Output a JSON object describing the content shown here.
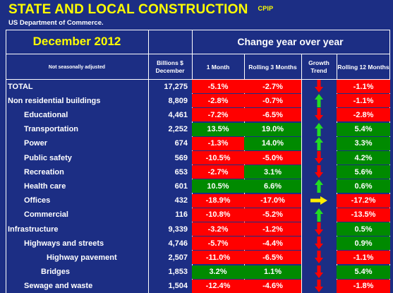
{
  "header": {
    "title": "STATE AND LOCAL CONSTRUCTION",
    "tag": "CPIP",
    "subtitle": "US Department of Commerce."
  },
  "table": {
    "month": "December 2012",
    "change_label": "Change year over year",
    "nsa_label": "Not seasonally adjusted",
    "columns": {
      "billions": "Billions $ December",
      "one_month": "1 Month",
      "rolling3": "Rolling 3 Months",
      "trend": "Growth Trend",
      "rolling12": "Rolling 12 Months"
    },
    "colors": {
      "red": "#ff0000",
      "green": "#008a00",
      "navy": "#1c2e84",
      "yellow": "#ffff00"
    },
    "rows": [
      {
        "label": "TOTAL",
        "indent": 0,
        "billions": "17,275",
        "m1": "-5.1%",
        "m1_color": "red",
        "r3": "-2.7%",
        "r3_color": "red",
        "trend": "down",
        "r12": "-1.1%",
        "r12_color": "red"
      },
      {
        "label": "Non residential buildings",
        "indent": 0,
        "billions": "8,809",
        "m1": "-2.8%",
        "m1_color": "red",
        "r3": "-0.7%",
        "r3_color": "red",
        "trend": "up",
        "r12": "-1.1%",
        "r12_color": "red"
      },
      {
        "label": "Educational",
        "indent": 1,
        "billions": "4,461",
        "m1": "-7.2%",
        "m1_color": "red",
        "r3": "-6.5%",
        "r3_color": "red",
        "trend": "down",
        "r12": "-2.8%",
        "r12_color": "red"
      },
      {
        "label": "Transportation",
        "indent": 1,
        "billions": "2,252",
        "m1": "13.5%",
        "m1_color": "green",
        "r3": "19.0%",
        "r3_color": "green",
        "trend": "up",
        "r12": "5.4%",
        "r12_color": "green"
      },
      {
        "label": "Power",
        "indent": 1,
        "billions": "674",
        "m1": "-1.3%",
        "m1_color": "red",
        "r3": "14.0%",
        "r3_color": "green",
        "trend": "up",
        "r12": "3.3%",
        "r12_color": "green"
      },
      {
        "label": "Public safety",
        "indent": 1,
        "billions": "569",
        "m1": "-10.5%",
        "m1_color": "red",
        "r3": "-5.0%",
        "r3_color": "red",
        "trend": "down",
        "r12": "4.2%",
        "r12_color": "green"
      },
      {
        "label": "Recreation",
        "indent": 1,
        "billions": "653",
        "m1": "-2.7%",
        "m1_color": "red",
        "r3": "3.1%",
        "r3_color": "green",
        "trend": "down",
        "r12": "5.6%",
        "r12_color": "green"
      },
      {
        "label": "Health care",
        "indent": 1,
        "billions": "601",
        "m1": "10.5%",
        "m1_color": "green",
        "r3": "6.6%",
        "r3_color": "green",
        "trend": "up",
        "r12": "0.6%",
        "r12_color": "green"
      },
      {
        "label": "Offices",
        "indent": 1,
        "billions": "432",
        "m1": "-18.9%",
        "m1_color": "red",
        "r3": "-17.0%",
        "r3_color": "red",
        "trend": "right",
        "r12": "-17.2%",
        "r12_color": "red"
      },
      {
        "label": "Commercial",
        "indent": 1,
        "billions": "116",
        "m1": "-10.8%",
        "m1_color": "red",
        "r3": "-5.2%",
        "r3_color": "red",
        "trend": "up",
        "r12": "-13.5%",
        "r12_color": "red"
      },
      {
        "label": "Infrastructure",
        "indent": 0,
        "billions": "9,339",
        "m1": "-3.2%",
        "m1_color": "red",
        "r3": "-1.2%",
        "r3_color": "red",
        "trend": "down",
        "r12": "0.5%",
        "r12_color": "green"
      },
      {
        "label": "Highways and streets",
        "indent": 1,
        "billions": "4,746",
        "m1": "-5.7%",
        "m1_color": "red",
        "r3": "-4.4%",
        "r3_color": "red",
        "trend": "down",
        "r12": "0.9%",
        "r12_color": "green"
      },
      {
        "label": "Highway pavement",
        "indent": 2,
        "billions": "2,507",
        "m1": "-11.0%",
        "m1_color": "red",
        "r3": "-6.5%",
        "r3_color": "red",
        "trend": "down",
        "r12": "-1.1%",
        "r12_color": "red"
      },
      {
        "label": "Bridges",
        "indent": 3,
        "billions": "1,853",
        "m1": "3.2%",
        "m1_color": "green",
        "r3": "1.1%",
        "r3_color": "green",
        "trend": "down",
        "r12": "5.4%",
        "r12_color": "green"
      },
      {
        "label": "Sewage and waste",
        "indent": 1,
        "billions": "1,504",
        "m1": "-12.4%",
        "m1_color": "red",
        "r3": "-4.6%",
        "r3_color": "red",
        "trend": "down",
        "r12": "-1.8%",
        "r12_color": "red"
      }
    ]
  }
}
